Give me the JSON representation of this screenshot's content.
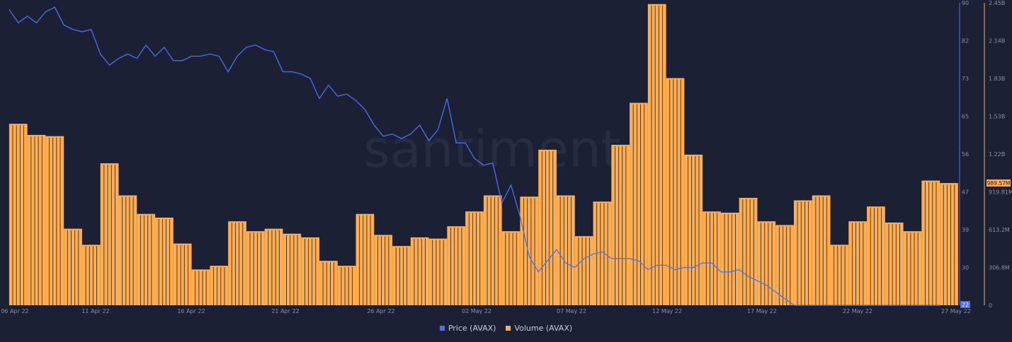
{
  "colors": {
    "background": "#1b2034",
    "price": "#4e6ff5",
    "volume": "#ffad4d",
    "volume_stroke": "#1b2034",
    "axis": "#8a90a6"
  },
  "watermark": "santiment",
  "chart_data": {
    "type": "bar+line",
    "title": "",
    "x_tick_labels": [
      "06 Apr 22",
      "11 Apr 22",
      "16 Apr 22",
      "21 Apr 22",
      "26 Apr 22",
      "02 May 22",
      "07 May 22",
      "12 May 22",
      "17 May 22",
      "22 May 22",
      "27 May 22"
    ],
    "price_axis": {
      "side": "right",
      "ticks": [
        "22",
        "30",
        "39",
        "47",
        "56",
        "65",
        "73",
        "82",
        "90"
      ],
      "range": [
        22,
        90
      ]
    },
    "volume_axis": {
      "side": "right",
      "ticks": [
        "0",
        "306.8M",
        "613.2M",
        "919.81M",
        "1.22B",
        "1.53B",
        "1.83B",
        "2.14B",
        "2.45B"
      ],
      "range": [
        0,
        2450000000
      ]
    },
    "price_current_label": "22",
    "volume_current_label": "989.57M",
    "series": [
      {
        "name": "Volume (AVAX)",
        "type": "bar",
        "dates": [
          "2022-04-06",
          "2022-04-07",
          "2022-04-08",
          "2022-04-09",
          "2022-04-10",
          "2022-04-11",
          "2022-04-12",
          "2022-04-13",
          "2022-04-14",
          "2022-04-15",
          "2022-04-16",
          "2022-04-17",
          "2022-04-18",
          "2022-04-19",
          "2022-04-20",
          "2022-04-21",
          "2022-04-22",
          "2022-04-23",
          "2022-04-24",
          "2022-04-25",
          "2022-04-26",
          "2022-04-27",
          "2022-04-28",
          "2022-04-29",
          "2022-04-30",
          "2022-05-01",
          "2022-05-02",
          "2022-05-03",
          "2022-05-04",
          "2022-05-05",
          "2022-05-06",
          "2022-05-07",
          "2022-05-08",
          "2022-05-09",
          "2022-05-10",
          "2022-05-11",
          "2022-05-12",
          "2022-05-13",
          "2022-05-14",
          "2022-05-15",
          "2022-05-16",
          "2022-05-17",
          "2022-05-18",
          "2022-05-19",
          "2022-05-20",
          "2022-05-21",
          "2022-05-22",
          "2022-05-23",
          "2022-05-24",
          "2022-05-25",
          "2022-05-26",
          "2022-05-27"
        ],
        "values": [
          1470000000,
          1380000000,
          1370000000,
          620000000,
          490000000,
          1150000000,
          890000000,
          740000000,
          710000000,
          500000000,
          290000000,
          320000000,
          680000000,
          600000000,
          620000000,
          580000000,
          550000000,
          360000000,
          320000000,
          740000000,
          570000000,
          480000000,
          550000000,
          540000000,
          640000000,
          760000000,
          890000000,
          600000000,
          880000000,
          1260000000,
          890000000,
          560000000,
          840000000,
          1300000000,
          1640000000,
          2440000000,
          1840000000,
          1220000000,
          760000000,
          750000000,
          870000000,
          680000000,
          650000000,
          850000000,
          890000000,
          490000000,
          680000000,
          800000000,
          670000000,
          600000000,
          1010000000,
          990000000
        ]
      },
      {
        "name": "Price (AVAX)",
        "type": "line",
        "dates": [
          "2022-04-06 00:00",
          "2022-04-06 12:00",
          "2022-04-07 00:00",
          "2022-04-07 12:00",
          "2022-04-08 00:00",
          "2022-04-08 12:00",
          "2022-04-09 00:00",
          "2022-04-09 12:00",
          "2022-04-10 00:00",
          "2022-04-10 12:00",
          "2022-04-11 00:00",
          "2022-04-11 12:00",
          "2022-04-12 00:00",
          "2022-04-12 12:00",
          "2022-04-13 00:00",
          "2022-04-13 12:00",
          "2022-04-14 00:00",
          "2022-04-14 12:00",
          "2022-04-15 00:00",
          "2022-04-15 12:00",
          "2022-04-16 00:00",
          "2022-04-16 12:00",
          "2022-04-17 00:00",
          "2022-04-17 12:00",
          "2022-04-18 00:00",
          "2022-04-18 12:00",
          "2022-04-19 00:00",
          "2022-04-19 12:00",
          "2022-04-20 00:00",
          "2022-04-20 12:00",
          "2022-04-21 00:00",
          "2022-04-21 12:00",
          "2022-04-22 00:00",
          "2022-04-22 12:00",
          "2022-04-23 00:00",
          "2022-04-23 12:00",
          "2022-04-24 00:00",
          "2022-04-24 12:00",
          "2022-04-25 00:00",
          "2022-04-25 12:00",
          "2022-04-26 00:00",
          "2022-04-26 12:00",
          "2022-04-27 00:00",
          "2022-04-27 12:00",
          "2022-04-28 00:00",
          "2022-04-28 12:00",
          "2022-04-29 00:00",
          "2022-04-29 12:00",
          "2022-04-30 00:00",
          "2022-04-30 12:00",
          "2022-05-01 00:00",
          "2022-05-01 12:00",
          "2022-05-02 00:00",
          "2022-05-02 12:00",
          "2022-05-03 00:00",
          "2022-05-03 12:00",
          "2022-05-04 00:00",
          "2022-05-04 12:00",
          "2022-05-05 00:00",
          "2022-05-05 12:00",
          "2022-05-06 00:00",
          "2022-05-06 12:00",
          "2022-05-07 00:00",
          "2022-05-07 12:00",
          "2022-05-08 00:00",
          "2022-05-08 12:00",
          "2022-05-09 00:00",
          "2022-05-09 12:00",
          "2022-05-10 00:00",
          "2022-05-10 12:00",
          "2022-05-11 00:00",
          "2022-05-11 12:00",
          "2022-05-12 00:00",
          "2022-05-12 12:00",
          "2022-05-13 00:00",
          "2022-05-13 12:00",
          "2022-05-14 00:00",
          "2022-05-14 12:00",
          "2022-05-15 00:00",
          "2022-05-15 12:00",
          "2022-05-16 00:00",
          "2022-05-16 12:00",
          "2022-05-17 00:00",
          "2022-05-17 12:00",
          "2022-05-18 00:00",
          "2022-05-18 12:00",
          "2022-05-19 00:00",
          "2022-05-19 12:00",
          "2022-05-20 00:00",
          "2022-05-20 12:00",
          "2022-05-21 00:00",
          "2022-05-21 12:00",
          "2022-05-22 00:00",
          "2022-05-22 12:00",
          "2022-05-23 00:00",
          "2022-05-23 12:00",
          "2022-05-24 00:00",
          "2022-05-24 12:00",
          "2022-05-25 00:00",
          "2022-05-25 12:00",
          "2022-05-26 00:00",
          "2022-05-26 12:00",
          "2022-05-27 00:00"
        ],
        "values": [
          88.5,
          85.5,
          87.0,
          85.5,
          88.0,
          89.0,
          85.0,
          84.0,
          83.5,
          84.0,
          78.5,
          76.0,
          77.5,
          78.5,
          77.5,
          80.5,
          78.0,
          80.0,
          77.0,
          77.0,
          78.0,
          78.0,
          78.5,
          78.0,
          74.5,
          78.0,
          80.0,
          80.5,
          79.5,
          79.0,
          74.5,
          74.5,
          74.0,
          73.0,
          68.5,
          71.5,
          69.0,
          69.5,
          68.0,
          66.0,
          62.5,
          60.0,
          60.5,
          59.5,
          60.5,
          62.5,
          59.0,
          61.5,
          68.5,
          58.5,
          58.5,
          55.0,
          53.5,
          54.0,
          45.0,
          49.0,
          42.0,
          33.0,
          29.5,
          32.0,
          34.5,
          31.5,
          30.5,
          32.5,
          33.5,
          34.0,
          32.5,
          32.5,
          32.5,
          32.0,
          30.0,
          31.0,
          31.0,
          30.0,
          30.5,
          30.5,
          31.5,
          31.5,
          29.5,
          29.5,
          30.0,
          28.5,
          27.5,
          26.5,
          25.0,
          23.5,
          22.0,
          22.0,
          22.0,
          22.0,
          22.0,
          22.0,
          22.0,
          22.0,
          22.0,
          22.0,
          22.0,
          22.0,
          22.0,
          22.0,
          22.0,
          22.0,
          22.0
        ]
      }
    ],
    "legend": {
      "placement": "bottom-center",
      "entries": [
        "Price (AVAX)",
        "Volume (AVAX)"
      ]
    },
    "grid": false
  }
}
